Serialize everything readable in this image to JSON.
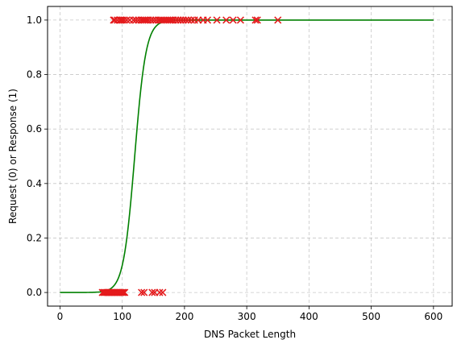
{
  "chart_data": {
    "type": "scatter",
    "title": "",
    "xlabel": "DNS Packet Length",
    "ylabel": "Request (0) or Response (1)",
    "xlim": [
      -20,
      630
    ],
    "ylim": [
      -0.05,
      1.05
    ],
    "x_ticks": [
      0,
      100,
      200,
      300,
      400,
      500,
      600
    ],
    "y_ticks": [
      0.0,
      0.2,
      0.4,
      0.6,
      0.8,
      1.0
    ],
    "x_tick_labels": [
      "0",
      "100",
      "200",
      "300",
      "400",
      "500",
      "600"
    ],
    "y_tick_labels": [
      "0.0",
      "0.2",
      "0.4",
      "0.6",
      "0.8",
      "1.0"
    ],
    "grid": true,
    "points": {
      "marker": "x",
      "color": "#e41a1c",
      "class_0_x": [
        68,
        70,
        72,
        74,
        76,
        78,
        80,
        82,
        84,
        86,
        88,
        90,
        92,
        94,
        96,
        98,
        100,
        102,
        104,
        131,
        135,
        148,
        152,
        160,
        165
      ],
      "class_1_x": [
        86,
        88,
        92,
        96,
        98,
        100,
        103,
        107,
        112,
        118,
        122,
        126,
        130,
        133,
        136,
        139,
        142,
        146,
        150,
        154,
        158,
        161,
        164,
        167,
        170,
        173,
        176,
        179,
        182,
        186,
        190,
        194,
        198,
        202,
        206,
        211,
        216,
        222,
        230,
        237,
        252,
        267,
        278,
        290,
        314,
        317,
        350
      ]
    },
    "series": [
      {
        "type": "line",
        "color": "#008000",
        "function": "logistic",
        "midpoint": 120,
        "slope": 0.11,
        "x_range": [
          0,
          600
        ]
      }
    ]
  }
}
